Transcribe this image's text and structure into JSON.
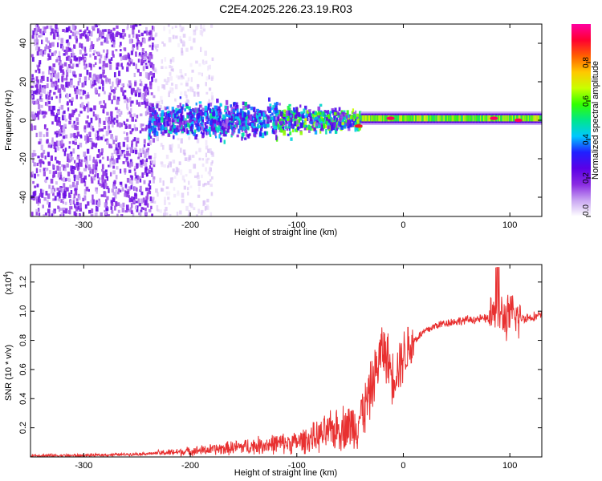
{
  "title": "C2E4.2025.226.23.19.R03",
  "chart_data": [
    {
      "type": "heatmap",
      "xlabel": "Height of straight line (km)",
      "ylabel": "Frequency (Hz)",
      "xlim": [
        -350,
        130
      ],
      "ylim": [
        -50,
        50
      ],
      "x_ticks": [
        -300,
        -200,
        -100,
        0,
        100
      ],
      "x_tick_labels": [
        "-300",
        "-200",
        "-100",
        "0",
        "100"
      ],
      "y_ticks": [
        -40,
        -20,
        0,
        20,
        40
      ],
      "y_tick_labels": [
        "-40",
        "-20",
        "0",
        "20",
        "40"
      ],
      "colorbar": {
        "label": "Normalized spectral amplitude",
        "range": [
          0,
          1
        ],
        "ticks": [
          0.0,
          0.2,
          0.4,
          0.6,
          0.8
        ],
        "tick_labels": [
          "0.0",
          "0.2",
          "0.4",
          "0.6",
          "0.8"
        ],
        "colormap": [
          "#ffffff",
          "#c9a6f2",
          "#8a2be2",
          "#5a00e6",
          "#2020ff",
          "#00c8ff",
          "#00e68c",
          "#32ff00",
          "#c8ff00",
          "#ffc800",
          "#ff6000",
          "#ff0030",
          "#ff00a0"
        ]
      },
      "regions": [
        {
          "x": [
            -350,
            -235
          ],
          "freq_center": 0,
          "freq_halfwidth": 50,
          "amplitude": 0.15,
          "density": "high"
        },
        {
          "x": [
            -235,
            -180
          ],
          "freq_center": 0,
          "freq_halfwidth": 50,
          "amplitude": 0.05,
          "density": "low"
        },
        {
          "x": [
            -240,
            -40
          ],
          "freq_center": 0,
          "freq_halfwidth": 10,
          "amplitude": 0.3,
          "density": "high"
        },
        {
          "x": [
            -40,
            130
          ],
          "freq_center": 1,
          "freq_halfwidth": 1.5,
          "amplitude": 0.7,
          "density": "band"
        }
      ],
      "peak_points": [
        {
          "x": -42,
          "freq": -3,
          "amplitude": 0.9
        },
        {
          "x": -12,
          "freq": 1,
          "amplitude": 0.95
        },
        {
          "x": 85,
          "freq": 1,
          "amplitude": 0.95
        },
        {
          "x": 108,
          "freq": 0,
          "amplitude": 0.95
        }
      ]
    },
    {
      "type": "line",
      "xlabel": "Height of straight line (km)",
      "ylabel": "SNR (10 * v/v)",
      "scale_label": "(x10",
      "scale_exponent": "4",
      "scale_suffix": ")",
      "xlim": [
        -350,
        130
      ],
      "ylim": [
        0,
        1.32
      ],
      "x_ticks": [
        -300,
        -200,
        -100,
        0,
        100
      ],
      "x_tick_labels": [
        "-300",
        "-200",
        "-100",
        "0",
        "100"
      ],
      "y_ticks": [
        0.2,
        0.4,
        0.6,
        0.8,
        1.0,
        1.2
      ],
      "y_tick_labels": [
        "0.2",
        "0.4",
        "0.6",
        "0.8",
        "1.0",
        "1.2"
      ],
      "color": "#e83030",
      "series": [
        {
          "x": [
            -350,
            -300,
            -250,
            -220,
            -200,
            -180,
            -150,
            -120,
            -100,
            -80,
            -60,
            -45,
            -35,
            -25,
            -20,
            -15,
            -10,
            -5,
            0,
            10,
            20,
            30,
            40,
            60,
            80,
            85,
            90,
            95,
            100,
            110,
            120,
            130
          ],
          "y": [
            0.01,
            0.01,
            0.02,
            0.03,
            0.04,
            0.05,
            0.07,
            0.09,
            0.1,
            0.14,
            0.2,
            0.22,
            0.35,
            0.6,
            0.75,
            0.68,
            0.55,
            0.62,
            0.7,
            0.8,
            0.86,
            0.9,
            0.92,
            0.94,
            0.95,
            0.97,
            0.98,
            0.95,
            0.97,
            0.95,
            0.96,
            0.97
          ]
        }
      ]
    }
  ]
}
